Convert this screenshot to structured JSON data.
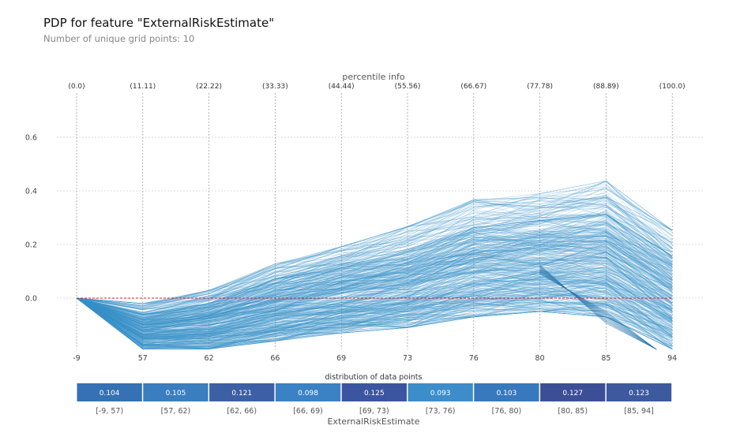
{
  "title": "PDP for feature \"ExternalRiskEstimate\"",
  "subtitle": "Number of unique grid points: 10",
  "colors": {
    "ice_line": "#3a93c8",
    "baseline": "#d62728",
    "grid": "#bcbcbc",
    "bin_shades": [
      "#3671b4",
      "#3a7ebf",
      "#3d5fa4",
      "#3a82c4",
      "#3b55a0",
      "#3c8dca",
      "#3878bc",
      "#3c4f96",
      "#3d5a9e"
    ]
  },
  "chart_data": {
    "type": "line",
    "title": "PDP for feature \"ExternalRiskEstimate\"",
    "subtitle": "Number of unique grid points: 10",
    "xlabel": "ExternalRiskEstimate",
    "ylabel": "",
    "x_ticks": [
      "-9",
      "57",
      "62",
      "66",
      "69",
      "73",
      "76",
      "80",
      "85",
      "94"
    ],
    "percentile_title": "percentile info",
    "percentile_ticks": [
      "(0.0)",
      "(11.11)",
      "(22.22)",
      "(33.33)",
      "(44.44)",
      "(55.56)",
      "(66.67)",
      "(77.78)",
      "(88.89)",
      "(100.0)"
    ],
    "y_ticks": [
      "0.6",
      "0.4",
      "0.2",
      "0.0"
    ],
    "ylim": [
      -0.19,
      0.75
    ],
    "grid": true,
    "ice_mean_curve": [
      0.0,
      -0.09,
      -0.07,
      -0.02,
      0.03,
      0.1,
      0.19,
      0.2,
      0.24,
      0.05
    ],
    "ice_upper_envelope": [
      0.0,
      0.01,
      0.08,
      0.22,
      0.29,
      0.35,
      0.44,
      0.48,
      0.51,
      0.36
    ],
    "ice_lower_envelope": [
      0.0,
      -0.19,
      -0.19,
      -0.16,
      -0.13,
      -0.11,
      -0.07,
      -0.05,
      -0.07,
      -0.19
    ],
    "baseline": 0.0,
    "distribution_title": "distribution of data points",
    "distribution": {
      "bins": [
        "[-9, 57)",
        "[57, 62)",
        "[62, 66)",
        "[66, 69)",
        "[69, 73)",
        "[73, 76)",
        "[76, 80)",
        "[80, 85)",
        "[85, 94]"
      ],
      "values": [
        "0.104",
        "0.105",
        "0.121",
        "0.098",
        "0.125",
        "0.093",
        "0.103",
        "0.127",
        "0.123"
      ]
    }
  }
}
